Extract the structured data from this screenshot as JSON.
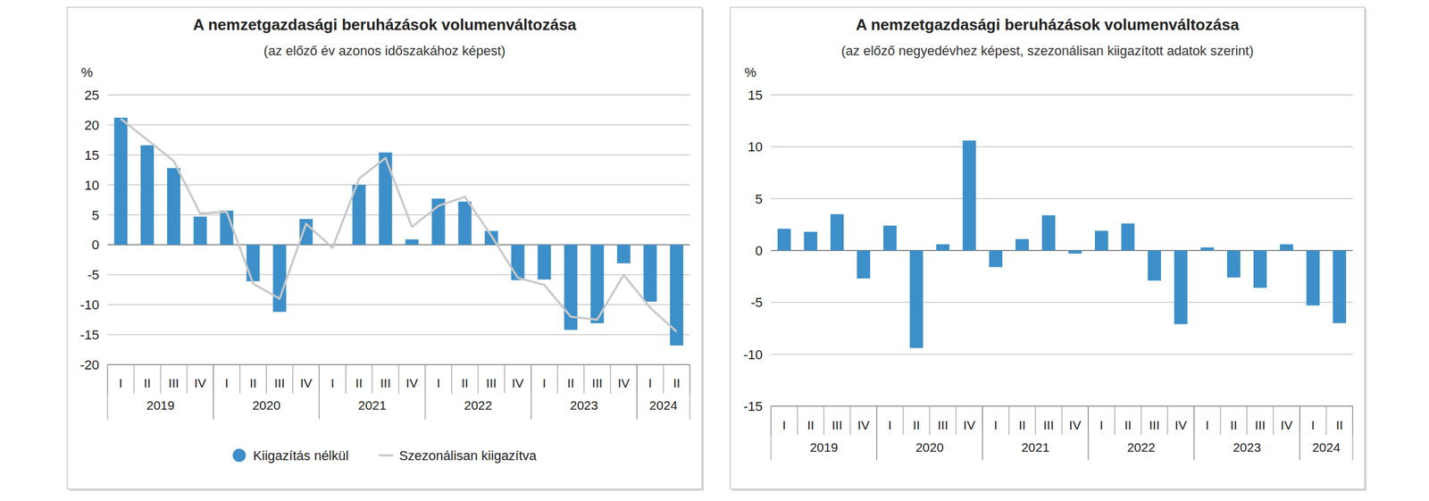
{
  "chart_data": [
    {
      "type": "bar",
      "title": "A nemzetgazdasági beruházások volumenváltozása",
      "subtitle": "(az előző év azonos időszakához képest)",
      "y_label": "%",
      "categories": [
        "I",
        "II",
        "III",
        "IV",
        "I",
        "II",
        "III",
        "IV",
        "I",
        "II",
        "III",
        "IV",
        "I",
        "II",
        "III",
        "IV",
        "I",
        "II",
        "III",
        "IV",
        "I",
        "II"
      ],
      "category_groups": [
        {
          "label": "2019",
          "size": 4
        },
        {
          "label": "2020",
          "size": 4
        },
        {
          "label": "2021",
          "size": 4
        },
        {
          "label": "2022",
          "size": 4
        },
        {
          "label": "2023",
          "size": 4
        },
        {
          "label": "2024",
          "size": 2
        }
      ],
      "series": [
        {
          "name": "Kiigazítás nélkül",
          "type": "bar",
          "color": "#3d8fc9",
          "values": [
            21.2,
            16.6,
            12.8,
            4.7,
            5.7,
            -6.1,
            -11.2,
            4.3,
            0,
            10.0,
            15.4,
            0.9,
            7.7,
            7.2,
            2.3,
            -5.9,
            -5.8,
            -14.2,
            -13.1,
            -3.1,
            -9.5,
            -16.8
          ]
        },
        {
          "name": "Szezonálisan kiigazítva",
          "type": "line",
          "color": "#c8c8c8",
          "values": [
            21.0,
            17.5,
            14.0,
            5.2,
            5.5,
            -6.5,
            -9.0,
            3.5,
            -0.5,
            11.0,
            14.5,
            3.0,
            6.5,
            8.0,
            1.5,
            -5.5,
            -6.7,
            -12.0,
            -12.5,
            -5.0,
            -10.5,
            -14.5
          ]
        }
      ],
      "ylim": [
        -20,
        25
      ],
      "yticks": [
        -20,
        -15,
        -10,
        -5,
        0,
        5,
        10,
        15,
        20,
        25
      ],
      "grid": true,
      "legend": "bottom"
    },
    {
      "type": "bar",
      "title": "A nemzetgazdasági beruházások volumenváltozása",
      "subtitle": "(az előző negyedévhez képest, szezonálisan kiigazított adatok szerint)",
      "y_label": "%",
      "categories": [
        "I",
        "II",
        "III",
        "IV",
        "I",
        "II",
        "III",
        "IV",
        "I",
        "II",
        "III",
        "IV",
        "I",
        "II",
        "III",
        "IV",
        "I",
        "II",
        "III",
        "IV",
        "I",
        "II"
      ],
      "category_groups": [
        {
          "label": "2019",
          "size": 4
        },
        {
          "label": "2020",
          "size": 4
        },
        {
          "label": "2021",
          "size": 4
        },
        {
          "label": "2022",
          "size": 4
        },
        {
          "label": "2023",
          "size": 4
        },
        {
          "label": "2024",
          "size": 2
        }
      ],
      "color": "#3d8fc9",
      "values": [
        2.1,
        1.8,
        3.5,
        -2.7,
        2.4,
        -9.4,
        0.6,
        10.6,
        -1.6,
        1.1,
        3.4,
        -0.3,
        1.9,
        2.6,
        -2.9,
        -7.1,
        0.3,
        -2.6,
        -3.6,
        0.6,
        -5.3,
        -7.0
      ],
      "ylim": [
        -15,
        15
      ],
      "yticks": [
        -15,
        -10,
        -5,
        0,
        5,
        10,
        15
      ],
      "grid": true
    }
  ]
}
